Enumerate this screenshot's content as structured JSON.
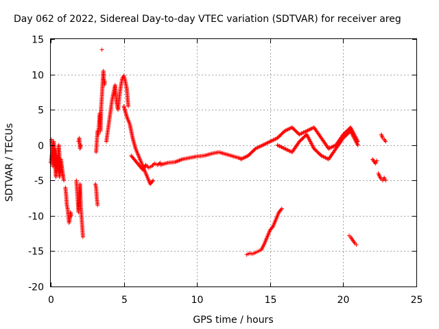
{
  "chart_data": {
    "type": "scatter",
    "title": "Day 062 of 2022, Sidereal Day-to-day VTEC variation (SDTVAR) for receiver areg",
    "xlabel": "GPS time / hours",
    "ylabel": "SDTVAR / TECUs",
    "xlim": [
      0,
      25
    ],
    "ylim": [
      -20,
      15
    ],
    "xticks": [
      0,
      5,
      10,
      15,
      20,
      25
    ],
    "yticks": [
      -20,
      -15,
      -10,
      -5,
      0,
      5,
      10,
      15
    ],
    "xtick_labels": [
      "0",
      "5",
      "10",
      "15",
      "20",
      "25"
    ],
    "ytick_labels": [
      "-20",
      "-15",
      "-10",
      "-5",
      "0",
      "5",
      "10",
      "15"
    ],
    "grid": true,
    "marker": "+",
    "color": "#ff0000",
    "series": [
      {
        "name": "SDTVAR",
        "segments": [
          {
            "x": [
              0.0,
              0.1,
              0.2,
              0.3,
              0.4,
              0.5,
              0.6,
              0.7,
              0.8,
              0.9
            ],
            "y": [
              -2.5,
              -1.0,
              0.5,
              -2.0,
              -3.5,
              -1.5,
              -4.5,
              -2.0,
              -4.0,
              -5.0
            ]
          },
          {
            "x": [
              0.05,
              0.15,
              0.25,
              0.35,
              0.45,
              0.55,
              0.65,
              0.75,
              0.85
            ],
            "y": [
              0.8,
              -3.0,
              -0.5,
              -4.5,
              -2.5,
              0.0,
              -3.8,
              -3.0,
              -4.5
            ]
          },
          {
            "x": [
              1.0,
              1.05,
              1.1,
              1.15,
              1.2,
              1.25,
              1.3,
              1.35,
              1.4
            ],
            "y": [
              -6.0,
              -7.0,
              -8.5,
              -9.0,
              -10.0,
              -11.0,
              -10.5,
              -9.5,
              -10.0
            ]
          },
          {
            "x": [
              1.75,
              1.8,
              1.85,
              1.9,
              1.95,
              2.0,
              2.05,
              2.1,
              2.15,
              2.2
            ],
            "y": [
              -5.0,
              -6.5,
              -8.0,
              -9.5,
              -7.0,
              -5.5,
              -8.5,
              -10.0,
              -11.5,
              -13.0
            ]
          },
          {
            "x": [
              1.9,
              1.95,
              2.0,
              2.05
            ],
            "y": [
              0.5,
              1.0,
              -0.5,
              0.0
            ]
          },
          {
            "x": [
              3.05,
              3.1,
              3.15,
              3.2
            ],
            "y": [
              -5.5,
              -6.0,
              -7.5,
              -8.5
            ]
          },
          {
            "x": [
              3.1,
              3.15,
              3.2,
              3.25,
              3.3,
              3.35,
              3.4,
              3.45,
              3.5,
              3.55,
              3.6,
              3.65,
              3.7
            ],
            "y": [
              -1.0,
              0.5,
              2.0,
              1.5,
              3.0,
              4.5,
              2.0,
              5.5,
              7.0,
              9.0,
              10.5,
              8.5,
              9.0
            ]
          },
          {
            "x": [
              3.5
            ],
            "y": [
              13.5
            ]
          },
          {
            "x": [
              3.8,
              3.9,
              4.0,
              4.1,
              4.2,
              4.3,
              4.4,
              4.5,
              4.6,
              4.7,
              4.8,
              4.9,
              5.0,
              5.1,
              5.2,
              5.3
            ],
            "y": [
              0.5,
              2.0,
              3.5,
              5.0,
              6.5,
              7.5,
              8.5,
              6.0,
              5.0,
              7.0,
              8.5,
              9.5,
              9.8,
              9.0,
              8.0,
              5.5
            ]
          },
          {
            "x": [
              5.0,
              5.2,
              5.4,
              5.6,
              5.8,
              6.0,
              6.2,
              6.4,
              6.6,
              6.8,
              7.0
            ],
            "y": [
              5.5,
              4.0,
              3.0,
              1.0,
              -0.5,
              -1.5,
              -2.5,
              -3.5,
              -4.5,
              -5.5,
              -5.0
            ]
          },
          {
            "x": [
              5.5,
              5.7,
              5.9,
              6.1,
              6.3,
              6.5,
              6.7,
              6.9,
              7.1,
              7.3,
              7.5
            ],
            "y": [
              -1.5,
              -2.0,
              -2.5,
              -3.0,
              -3.5,
              -2.8,
              -3.2,
              -3.0,
              -2.6,
              -2.8,
              -2.5
            ]
          },
          {
            "x": [
              7.5,
              8.0,
              8.5,
              9.0,
              9.5,
              10.0,
              10.5,
              11.0,
              11.5,
              12.0,
              12.5,
              13.0
            ],
            "y": [
              -2.8,
              -2.5,
              -2.4,
              -2.0,
              -1.8,
              -1.6,
              -1.5,
              -1.2,
              -1.0,
              -1.3,
              -1.6,
              -1.9
            ]
          },
          {
            "x": [
              13.0,
              13.5,
              14.0,
              14.5,
              15.0,
              15.5,
              16.0,
              16.5,
              17.0,
              17.5,
              18.0,
              18.5,
              19.0,
              19.5,
              20.0,
              20.5,
              21.0
            ],
            "y": [
              -2.0,
              -1.5,
              -0.5,
              0.0,
              0.5,
              1.0,
              2.0,
              2.5,
              1.5,
              2.0,
              2.5,
              1.0,
              -0.5,
              0.0,
              1.5,
              2.5,
              0.5
            ]
          },
          {
            "x": [
              15.5,
              16.0,
              16.5,
              17.0,
              17.5,
              18.0,
              18.5,
              19.0,
              19.5,
              20.0,
              20.5,
              21.0
            ],
            "y": [
              0.0,
              -0.5,
              -1.0,
              0.5,
              1.5,
              -0.5,
              -1.5,
              -2.0,
              -0.5,
              1.0,
              2.0,
              0.0
            ]
          },
          {
            "x": [
              13.4,
              13.6,
              13.8,
              14.0,
              14.2,
              14.4,
              14.6,
              14.8,
              15.0,
              15.2,
              15.4,
              15.6,
              15.8
            ],
            "y": [
              -15.5,
              -15.3,
              -15.4,
              -15.2,
              -15.0,
              -14.8,
              -14.0,
              -13.0,
              -12.0,
              -11.5,
              -10.5,
              -9.5,
              -9.0
            ]
          },
          {
            "x": [
              20.4,
              20.5,
              20.6,
              20.7,
              20.8,
              20.9
            ],
            "y": [
              -12.8,
              -13.0,
              -13.3,
              -13.6,
              -13.9,
              -14.1
            ]
          },
          {
            "x": [
              22.0,
              22.1,
              22.2,
              22.3
            ],
            "y": [
              -2.0,
              -2.3,
              -2.6,
              -2.2
            ]
          },
          {
            "x": [
              22.4,
              22.5,
              22.6,
              22.7,
              22.8,
              22.9
            ],
            "y": [
              -4.0,
              -4.5,
              -4.8,
              -5.0,
              -4.6,
              -5.0
            ]
          },
          {
            "x": [
              22.6,
              22.7,
              22.8,
              22.9
            ],
            "y": [
              1.5,
              1.0,
              0.8,
              0.5
            ]
          }
        ]
      }
    ]
  }
}
